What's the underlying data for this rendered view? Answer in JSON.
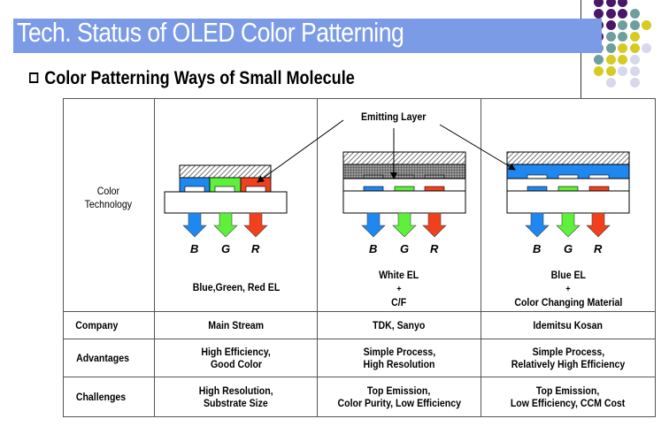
{
  "slide": {
    "title": "Tech. Status of OLED Color Patterning",
    "subtitle": "Color Patterning Ways of Small Molecule",
    "colors": {
      "title_bar": "#7b9be6",
      "blue": "#1e88f0",
      "green": "#5ef03a",
      "red": "#f0401e"
    },
    "decor_dots": [
      [
        "#4a1668",
        "#4a1668",
        "#4a1668",
        null,
        null
      ],
      [
        "#4a1668",
        "#4a1668",
        "#4a1668",
        "#6e9e9e",
        null
      ],
      [
        "#4a1668",
        "#4a1668",
        "#6e9e9e",
        "#6e9e9e",
        "#d4cc22"
      ],
      [
        "#4a1668",
        "#6e9e9e",
        "#6e9e9e",
        "#d4cc22",
        null
      ],
      [
        "#6e9e9e",
        "#6e9e9e",
        "#d4cc22",
        "#d4cc22",
        "#d8d8ec"
      ],
      [
        "#6e9e9e",
        "#d4cc22",
        "#d4cc22",
        "#d8d8ec",
        null
      ],
      [
        "#d4cc22",
        "#d4cc22",
        "#d8d8ec",
        "#d8d8ec",
        null
      ],
      [
        null,
        "#d8d8ec",
        null,
        "#d8d8ec",
        null
      ]
    ]
  },
  "diagram": {
    "emitting_layer_label": "Emitting Layer",
    "color_labels": [
      "B",
      "G",
      "R"
    ]
  },
  "table": {
    "rows": [
      {
        "label": "Color Technology",
        "label_lines": [
          "Color",
          "Technology"
        ],
        "cells": [
          {
            "caption_lines": [
              "Blue,Green, Red EL"
            ]
          },
          {
            "caption_lines": [
              "White EL",
              "+",
              "C/F"
            ]
          },
          {
            "caption_lines": [
              "Blue EL",
              "+",
              "Color Changing Material"
            ]
          }
        ]
      },
      {
        "label": "Company",
        "cells": [
          [
            "Main Stream"
          ],
          [
            "TDK, Sanyo"
          ],
          [
            "Idemitsu Kosan"
          ]
        ]
      },
      {
        "label": "Advantages",
        "cells": [
          [
            "High Efficiency,",
            "Good Color"
          ],
          [
            "Simple Process,",
            "High Resolution"
          ],
          [
            "Simple Process,",
            "Relatively High Efficiency"
          ]
        ]
      },
      {
        "label": "Challenges",
        "cells": [
          [
            "High Resolution,",
            "Substrate Size"
          ],
          [
            "Top Emission,",
            "Color Purity, Low Efficiency"
          ],
          [
            "Top Emission,",
            "Low Efficiency, CCM Cost"
          ]
        ]
      }
    ]
  }
}
